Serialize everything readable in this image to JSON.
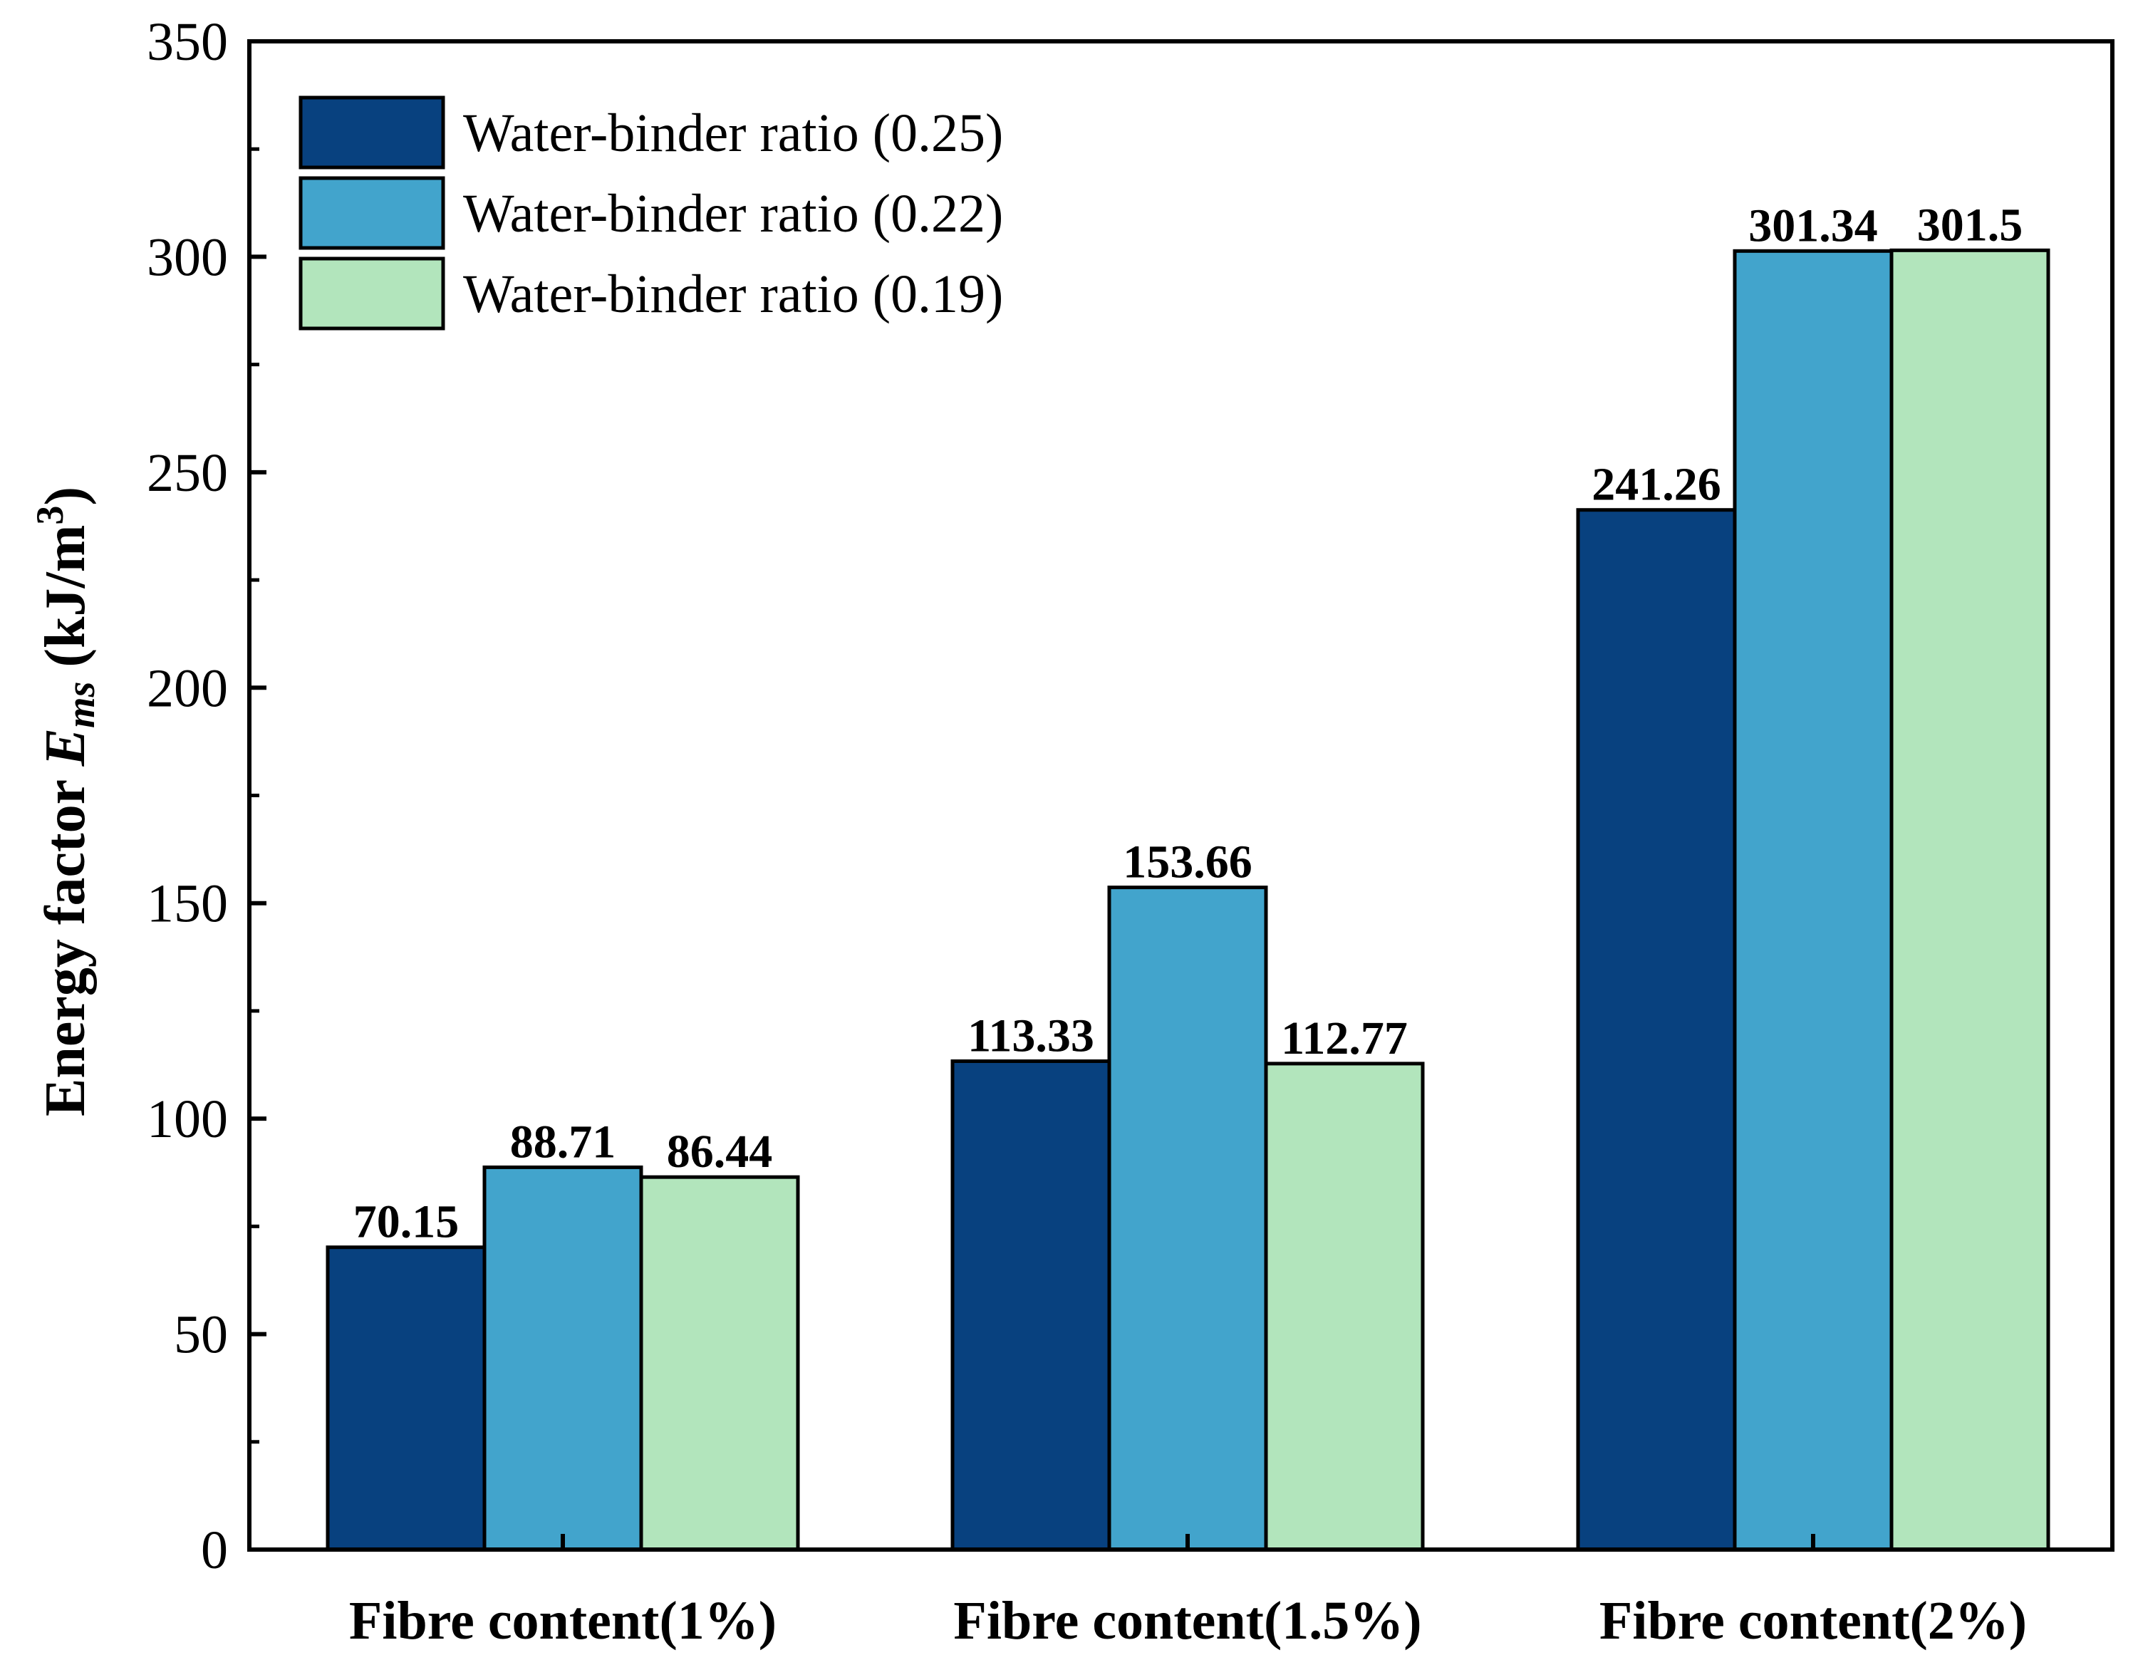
{
  "chart_data": {
    "type": "bar",
    "title": "",
    "xlabel": "",
    "ylabel_parts": {
      "prefix": "Energy factor ",
      "symbol": "E",
      "subscript": "ms",
      "unit_open": " (kJ/m",
      "unit_sup": "3",
      "unit_close": ")"
    },
    "categories": [
      "Fibre content(1%)",
      "Fibre content(1.5%)",
      "Fibre content(2%)"
    ],
    "series": [
      {
        "name": "Water-binder ratio (0.25)",
        "color": "#08417f",
        "values": [
          70.15,
          113.33,
          241.26
        ],
        "labels": [
          "70.15",
          "113.33",
          "241.26"
        ]
      },
      {
        "name": "Water-binder ratio (0.22)",
        "color": "#42a4cc",
        "values": [
          88.71,
          153.66,
          301.34
        ],
        "labels": [
          "88.71",
          "153.66",
          "301.34"
        ]
      },
      {
        "name": "Water-binder ratio (0.19)",
        "color": "#b2e5bc",
        "values": [
          86.44,
          112.77,
          301.5
        ],
        "labels": [
          "86.44",
          "112.77",
          "301.5"
        ]
      }
    ],
    "ylim": [
      0,
      350
    ],
    "yticks": [
      0,
      50,
      100,
      150,
      200,
      250,
      300,
      350
    ],
    "grid": false,
    "legend_position": "top-left"
  }
}
